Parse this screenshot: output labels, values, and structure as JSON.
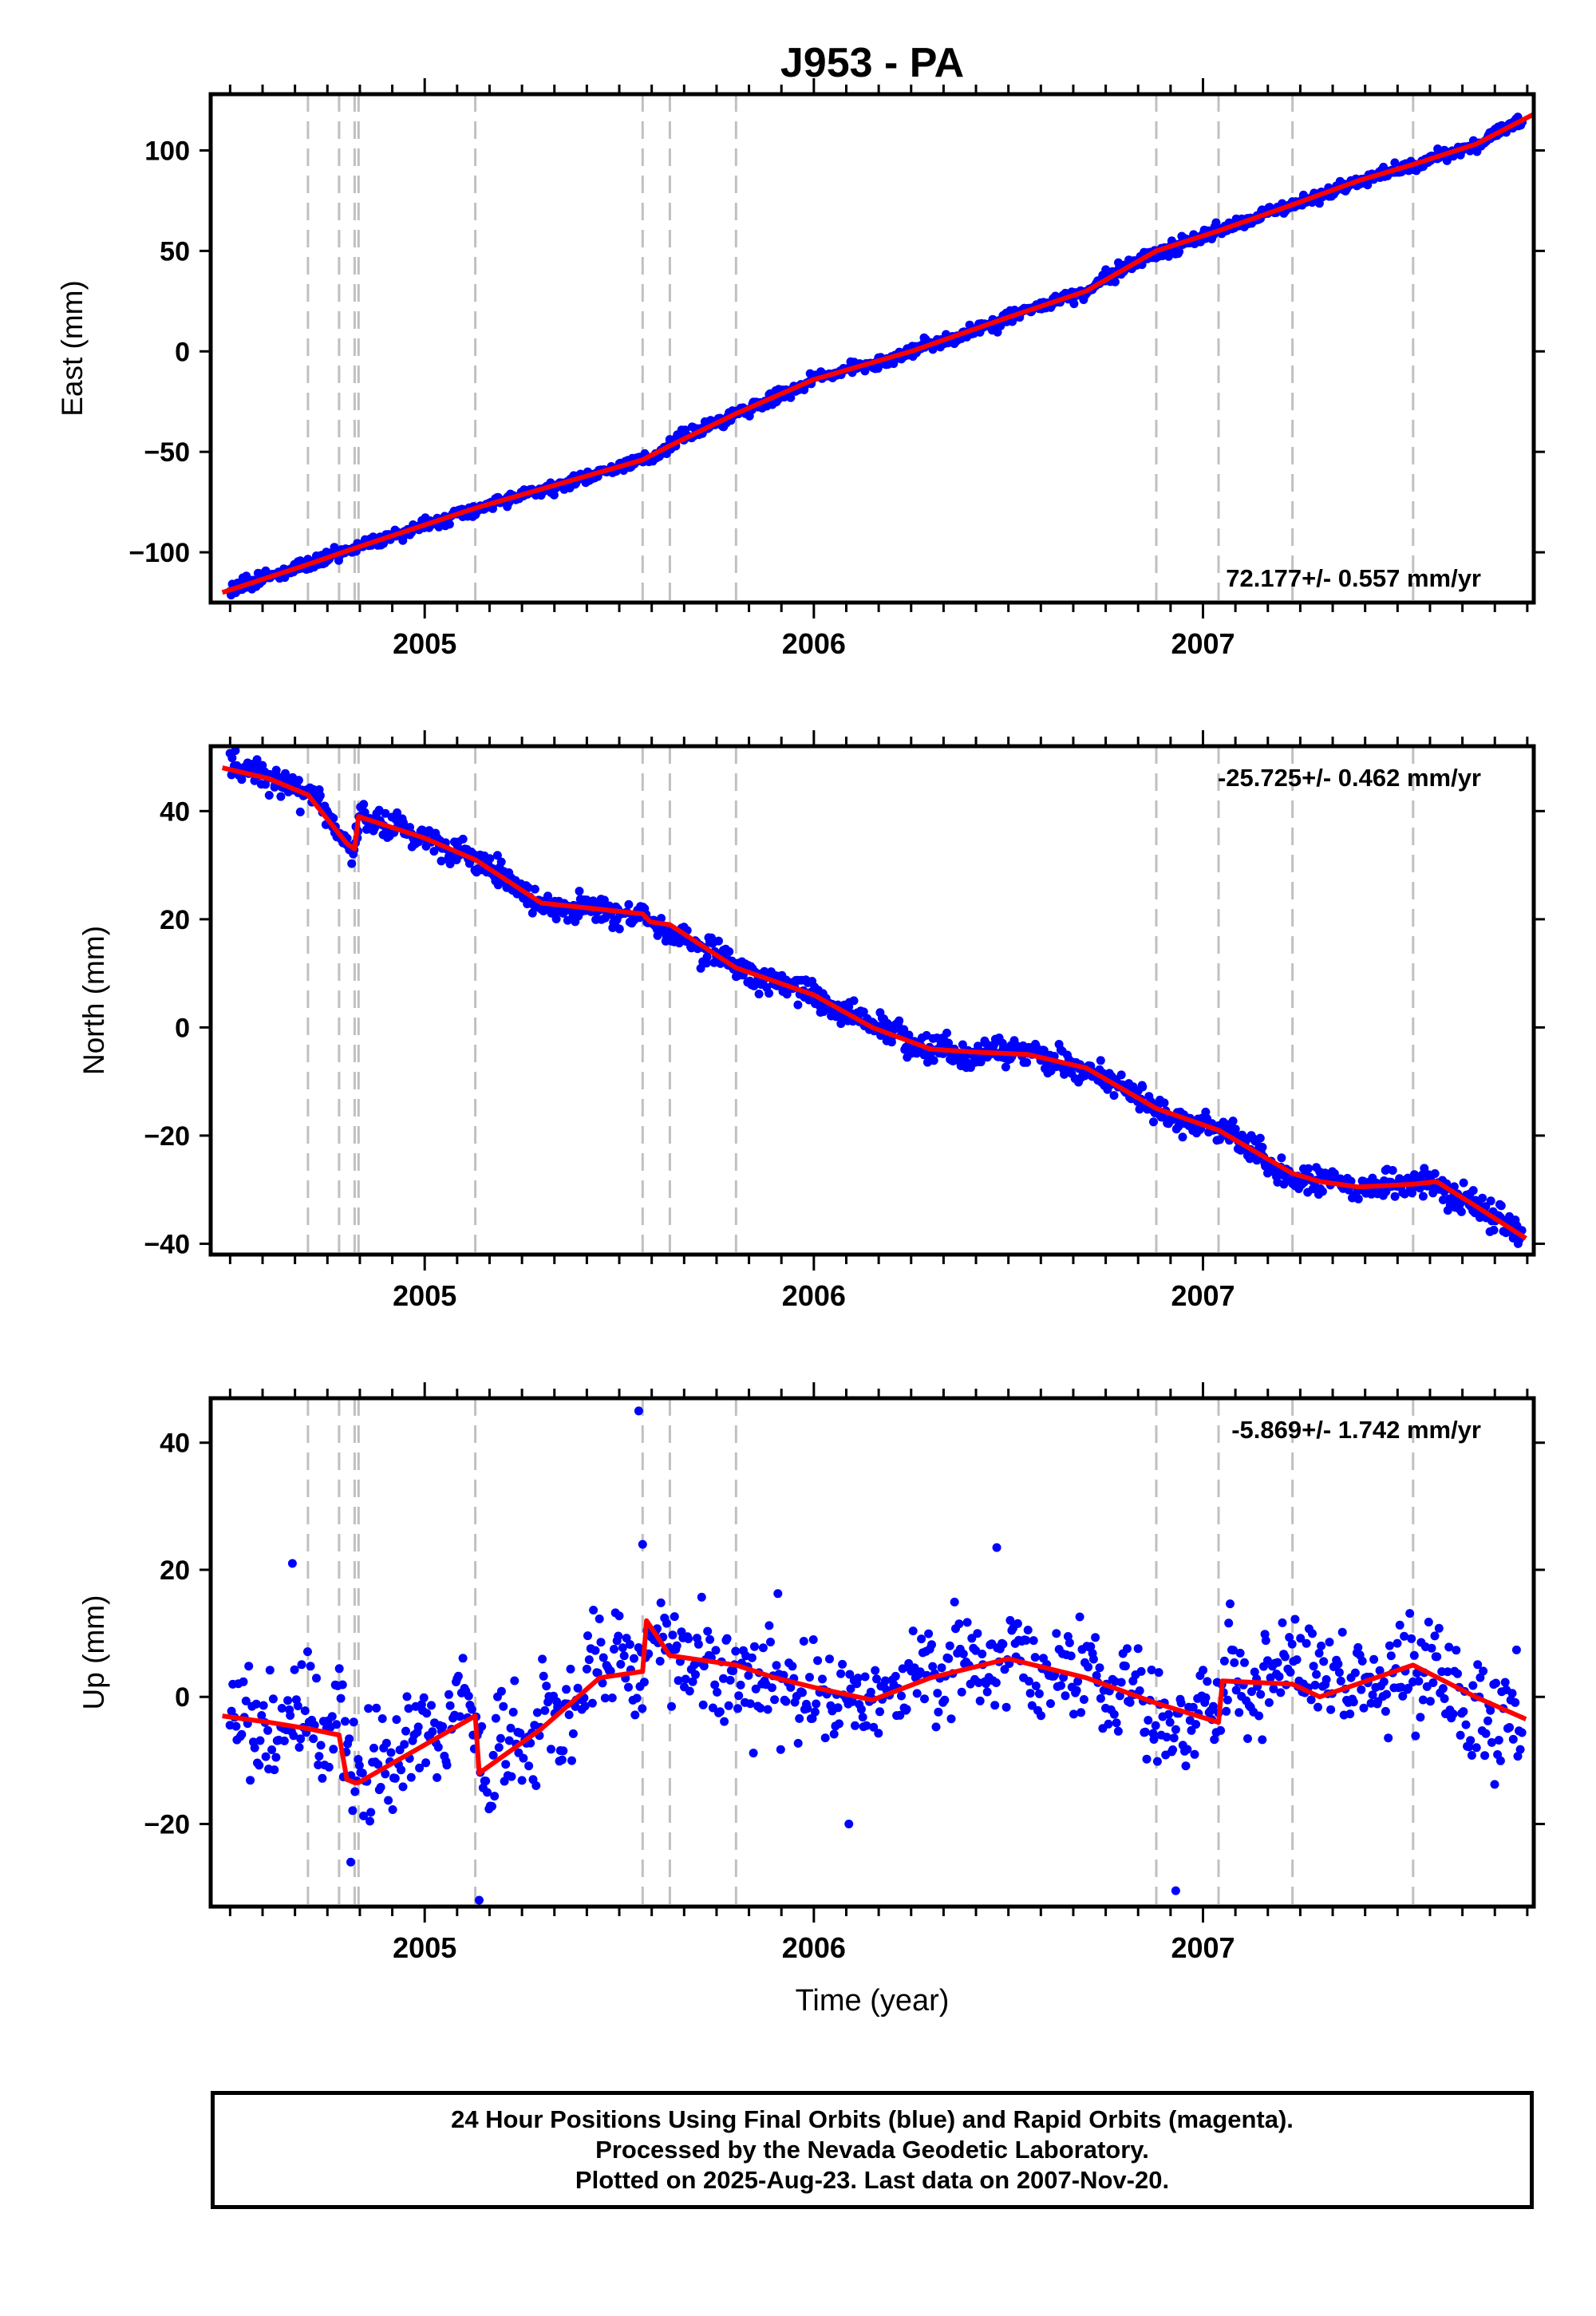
{
  "title": "J953 - PA",
  "footer": {
    "line1": "24 Hour Positions Using Final Orbits (blue) and Rapid Orbits (magenta).",
    "line2": "Processed by the Nevada Geodetic Laboratory.",
    "line3": "Plotted on 2025-Aug-23. Last data on 2007-Nov-20."
  },
  "colors": {
    "data": "#0000ff",
    "model": "#ff0000",
    "break_lines": "#c0c0c0",
    "frame": "#000000"
  },
  "chart_data": [
    {
      "type": "scatter",
      "panel": "east",
      "ylabel": "East (mm)",
      "xlabel": "",
      "xlim": [
        2004.45,
        2007.85
      ],
      "ylim": [
        -125,
        128
      ],
      "yticks": [
        -100,
        -50,
        0,
        50,
        100
      ],
      "xticks": [
        2005,
        2006,
        2007
      ],
      "xtick_labels": [
        "2005",
        "2006",
        "2007"
      ],
      "rate_label": "72.177+/- 0.557 mm/yr",
      "rate_position": "bottom-right",
      "break_epochs": [
        2004.7,
        2004.78,
        2004.82,
        2004.83,
        2005.13,
        2005.56,
        2005.63,
        2005.8,
        2006.88,
        2007.04,
        2007.23,
        2007.54
      ],
      "model_x": [
        2004.48,
        2004.7,
        2004.82,
        2005.13,
        2005.56,
        2005.63,
        2005.8,
        2006.0,
        2006.25,
        2006.5,
        2006.7,
        2006.88,
        2007.04,
        2007.23,
        2007.4,
        2007.54,
        2007.7,
        2007.88
      ],
      "model_y": [
        -120,
        -106,
        -98,
        -78,
        -54,
        -47,
        -31,
        -14,
        0,
        17,
        30,
        50,
        60,
        73,
        85,
        93,
        103,
        121
      ],
      "noise_mm": 1.8,
      "n_points": 1200,
      "series": [
        {
          "name": "24 Hour Positions (blue)",
          "color": "#0000ff",
          "role": "data"
        },
        {
          "name": "model",
          "color": "#ff0000",
          "role": "model"
        }
      ]
    },
    {
      "type": "scatter",
      "panel": "north",
      "ylabel": "North (mm)",
      "xlabel": "",
      "xlim": [
        2004.45,
        2007.85
      ],
      "ylim": [
        -42,
        52
      ],
      "yticks": [
        -40,
        -20,
        0,
        20,
        40
      ],
      "xticks": [
        2005,
        2006,
        2007
      ],
      "xtick_labels": [
        "2005",
        "2006",
        "2007"
      ],
      "rate_label": "-25.725+/- 0.462 mm/yr",
      "rate_position": "top-right",
      "break_epochs": [
        2004.7,
        2004.78,
        2004.82,
        2004.83,
        2005.13,
        2005.56,
        2005.63,
        2005.8,
        2006.88,
        2007.04,
        2007.23,
        2007.54
      ],
      "model_x": [
        2004.48,
        2004.6,
        2004.7,
        2004.8,
        2004.82,
        2004.83,
        2005.0,
        2005.13,
        2005.3,
        2005.56,
        2005.58,
        2005.63,
        2005.8,
        2006.0,
        2006.15,
        2006.3,
        2006.4,
        2006.55,
        2006.7,
        2006.88,
        2007.04,
        2007.23,
        2007.3,
        2007.4,
        2007.54,
        2007.6,
        2007.7,
        2007.83
      ],
      "model_y": [
        48,
        46,
        43,
        34,
        33,
        39,
        35,
        31,
        23,
        21,
        19.5,
        19,
        11,
        6,
        0,
        -4,
        -4.5,
        -5,
        -7.5,
        -15,
        -19,
        -27,
        -28.5,
        -29.5,
        -29,
        -28.5,
        -33,
        -39
      ],
      "noise_mm": 1.5,
      "n_points": 1200,
      "series": [
        {
          "name": "24 Hour Positions (blue)",
          "color": "#0000ff",
          "role": "data"
        },
        {
          "name": "model",
          "color": "#ff0000",
          "role": "model"
        }
      ]
    },
    {
      "type": "scatter",
      "panel": "up",
      "ylabel": "Up (mm)",
      "xlabel": "Time (year)",
      "xlim": [
        2004.45,
        2007.85
      ],
      "ylim": [
        -33,
        47
      ],
      "yticks": [
        -20,
        0,
        20,
        40
      ],
      "xticks": [
        2005,
        2006,
        2007
      ],
      "xtick_labels": [
        "2005",
        "2006",
        "2007"
      ],
      "rate_label": "-5.869+/- 1.742 mm/yr",
      "rate_position": "top-right",
      "break_epochs": [
        2004.7,
        2004.78,
        2004.82,
        2004.83,
        2005.13,
        2005.56,
        2005.63,
        2005.8,
        2006.88,
        2007.04,
        2007.23,
        2007.54
      ],
      "model_x": [
        2004.48,
        2004.6,
        2004.7,
        2004.78,
        2004.8,
        2004.82,
        2004.83,
        2005.13,
        2005.14,
        2005.3,
        2005.45,
        2005.56,
        2005.57,
        2005.63,
        2005.8,
        2005.9,
        2006.0,
        2006.15,
        2006.3,
        2006.5,
        2006.7,
        2006.88,
        2007.04,
        2007.05,
        2007.23,
        2007.3,
        2007.54,
        2007.7,
        2007.83
      ],
      "model_y": [
        -3,
        -4,
        -5,
        -6,
        -13,
        -13.5,
        -13.5,
        -3,
        -12,
        -5,
        3,
        4,
        12,
        6.5,
        5,
        3,
        1.5,
        -0.5,
        3,
        6,
        3,
        -1,
        -4,
        2.5,
        2,
        0,
        5,
        0,
        -3.5
      ],
      "noise_mm": 5.0,
      "n_points": 900,
      "outliers": [
        [
          2004.66,
          21
        ],
        [
          2005.55,
          45
        ],
        [
          2005.56,
          24
        ],
        [
          2006.47,
          23.5
        ],
        [
          2005.14,
          -32
        ],
        [
          2006.93,
          -30.5
        ],
        [
          2004.81,
          -26
        ],
        [
          2006.09,
          -20
        ]
      ],
      "series": [
        {
          "name": "24 Hour Positions (blue)",
          "color": "#0000ff",
          "role": "data"
        },
        {
          "name": "model",
          "color": "#ff0000",
          "role": "model"
        }
      ]
    }
  ]
}
